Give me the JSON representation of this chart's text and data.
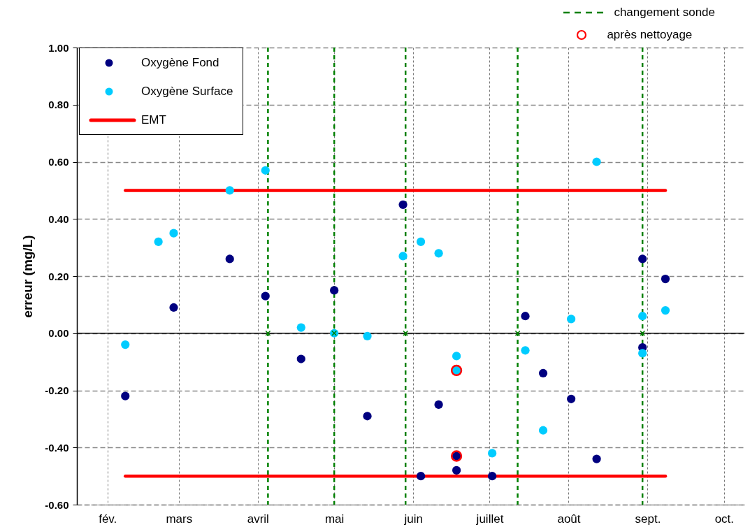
{
  "chart_data": {
    "type": "scatter",
    "ylabel": "erreur (mg/L)",
    "xlim": [
      "--01-20",
      "--10-09"
    ],
    "xticks": [
      {
        "value": "--02-01",
        "label": "fév."
      },
      {
        "value": "--03-01",
        "label": "mars"
      },
      {
        "value": "--04-01",
        "label": "avril"
      },
      {
        "value": "--05-01",
        "label": "mai"
      },
      {
        "value": "--06-01",
        "label": "juin"
      },
      {
        "value": "--07-01",
        "label": "juillet"
      },
      {
        "value": "--08-01",
        "label": "août"
      },
      {
        "value": "--09-01",
        "label": "sept."
      },
      {
        "value": "--10-01",
        "label": "oct."
      }
    ],
    "ylim": [
      -0.6,
      1.0
    ],
    "yticks": [
      {
        "value": 1,
        "label": "1.00"
      },
      {
        "value": 0.8,
        "label": "0.80"
      },
      {
        "value": 0.6,
        "label": "0.60"
      },
      {
        "value": 0.4,
        "label": "0.40"
      },
      {
        "value": 0.2,
        "label": "0.20"
      },
      {
        "value": 0,
        "label": "0.00"
      },
      {
        "value": -0.2,
        "label": "-0.20"
      },
      {
        "value": -0.4,
        "label": "-0.40"
      },
      {
        "value": -0.6,
        "label": "-0.60"
      }
    ],
    "grid": true,
    "legend": "top left",
    "marker": "circle",
    "series": [
      {
        "name": "Oxygène Fond",
        "color": "#000080",
        "x": [
          "--02-08",
          "--02-27",
          "--03-21",
          "--04-04",
          "--04-18",
          "--05-01",
          "--05-14",
          "--05-28",
          "--06-04",
          "--06-11",
          "--06-18",
          "--06-18",
          "--07-02",
          "--07-15",
          "--07-22",
          "--08-02",
          "--08-12",
          "--08-30",
          "--08-30",
          "--09-08"
        ],
        "values": [
          -0.22,
          0.09,
          0.26,
          0.13,
          -0.09,
          0.15,
          -0.29,
          0.45,
          -0.5,
          -0.25,
          -0.48,
          -0.43,
          -0.5,
          0.06,
          -0.14,
          -0.23,
          -0.44,
          0.26,
          -0.05,
          0.19
        ]
      },
      {
        "name": "Oxygène Surface",
        "color": "#00ccff",
        "x": [
          "--02-08",
          "--02-21",
          "--02-27",
          "--03-21",
          "--04-04",
          "--04-18",
          "--05-01",
          "--05-14",
          "--05-28",
          "--06-04",
          "--06-11",
          "--06-18",
          "--06-18",
          "--07-02",
          "--07-15",
          "--07-22",
          "--08-02",
          "--08-12",
          "--08-30",
          "--08-30",
          "--09-08"
        ],
        "values": [
          -0.04,
          0.32,
          0.35,
          0.5,
          0.57,
          0.02,
          0.0,
          -0.01,
          0.27,
          0.32,
          0.28,
          -0.08,
          -0.13,
          -0.42,
          -0.06,
          -0.34,
          0.05,
          0.6,
          0.06,
          -0.07,
          0.08
        ]
      },
      {
        "name": "EMT",
        "type": "line",
        "color": "#ff0000",
        "marker": "none",
        "x": [
          "--02-08",
          "--09-08"
        ],
        "values": [
          0.5,
          0.5
        ]
      },
      {
        "type": "line",
        "color": "#ff0000",
        "marker": "none",
        "x": [
          "--02-08",
          "--09-08"
        ],
        "values": [
          -0.5,
          -0.5
        ]
      },
      {
        "type": "scatter",
        "color": "#008000",
        "marker": "cross",
        "x": [
          "--04-05",
          "--05-01",
          "--05-29",
          "--07-12",
          "--08-30"
        ],
        "values": [
          0,
          0,
          0,
          0,
          0
        ]
      },
      {
        "name": "après nettoyage",
        "color": "#ff0000",
        "marker": "circle",
        "x": [
          "--06-18",
          "--06-18"
        ],
        "values": [
          -0.43,
          -0.13
        ]
      }
    ],
    "ref_lines": [
      {
        "axis": "y",
        "value": 0,
        "color": "#000000"
      },
      {
        "axis": "x",
        "value": "--04-05",
        "label": "changement sonde",
        "color": "#008000",
        "line_style": "dashed"
      },
      {
        "axis": "x",
        "value": "--05-01",
        "color": "#008000",
        "line_style": "dashed"
      },
      {
        "axis": "x",
        "value": "--05-29",
        "color": "#008000",
        "line_style": "dashed"
      },
      {
        "axis": "x",
        "value": "--07-12",
        "color": "#008000",
        "line_style": "dashed"
      },
      {
        "axis": "x",
        "value": "--08-30",
        "color": "#008000",
        "line_style": "dashed"
      }
    ]
  }
}
